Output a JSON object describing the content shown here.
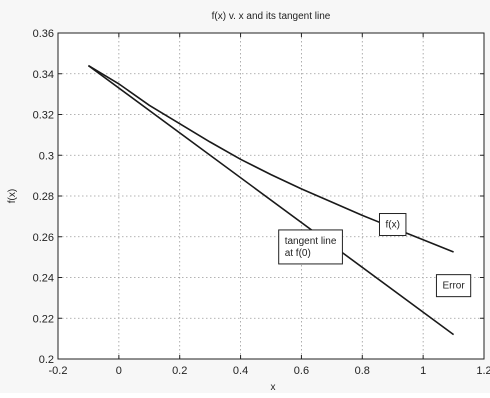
{
  "chart_data": {
    "type": "line",
    "title": "f(x) v. x and its tangent line",
    "xlabel": "x",
    "ylabel": "f(x)",
    "xlim": [
      -0.2,
      1.2
    ],
    "ylim": [
      0.2,
      0.36
    ],
    "xticks": [
      -0.2,
      0,
      0.2,
      0.4,
      0.6,
      0.8,
      1,
      1.2
    ],
    "xtick_labels": [
      "-0.2",
      "0",
      "0.2",
      "0.4",
      "0.6",
      "0.8",
      "1",
      "1.2"
    ],
    "yticks": [
      0.2,
      0.22,
      0.24,
      0.26,
      0.28,
      0.3,
      0.32,
      0.34,
      0.36
    ],
    "ytick_labels": [
      "0.2",
      "0.22",
      "0.24",
      "0.26",
      "0.28",
      "0.3",
      "0.32",
      "0.34",
      "0.36"
    ],
    "grid": true,
    "series": [
      {
        "x": [
          -0.1,
          0.0,
          0.1,
          0.2,
          0.3,
          0.4,
          0.5,
          0.6,
          0.7,
          0.8,
          0.9,
          1.0,
          1.1
        ],
        "y": [
          0.344,
          0.335,
          0.3245,
          0.3155,
          0.3065,
          0.298,
          0.2905,
          0.2835,
          0.277,
          0.2705,
          0.2645,
          0.2585,
          0.2525
        ]
      },
      {
        "x": [
          -0.1,
          1.1
        ],
        "y": [
          0.344,
          0.212
        ]
      }
    ],
    "annotations": [
      {
        "label": "f(x)",
        "x": 0.9,
        "y": 0.266
      },
      {
        "label": "tangent line\nat f(0)",
        "x": 0.63,
        "y": 0.255
      },
      {
        "label": "Error",
        "x": 1.1,
        "y": 0.236
      }
    ]
  }
}
